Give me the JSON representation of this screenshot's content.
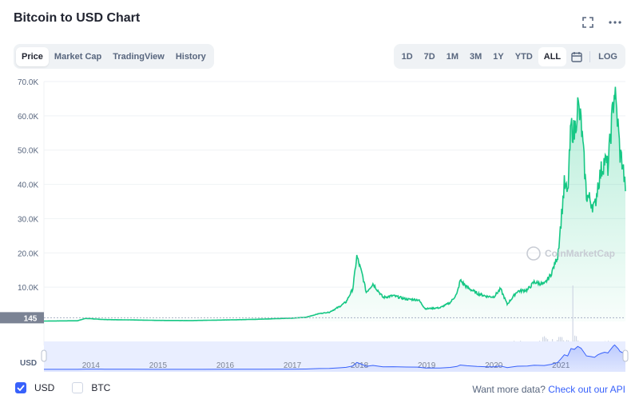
{
  "title": "Bitcoin to USD Chart",
  "tabs": [
    {
      "label": "Price",
      "active": true
    },
    {
      "label": "Market Cap",
      "active": false
    },
    {
      "label": "TradingView",
      "active": false
    },
    {
      "label": "History",
      "active": false
    }
  ],
  "ranges": [
    {
      "label": "1D",
      "active": false
    },
    {
      "label": "7D",
      "active": false
    },
    {
      "label": "1M",
      "active": false
    },
    {
      "label": "3M",
      "active": false
    },
    {
      "label": "1Y",
      "active": false
    },
    {
      "label": "YTD",
      "active": false
    },
    {
      "label": "ALL",
      "active": true
    }
  ],
  "log_label": "LOG",
  "icons": {
    "fullscreen": "fullscreen-icon",
    "more": "more-icon",
    "calendar": "calendar-icon"
  },
  "colors": {
    "line": "#16c784",
    "navigator": "#3861fb",
    "accent": "#3861fb",
    "text": "#222531",
    "muted": "#58667e"
  },
  "legend": [
    {
      "label": "USD",
      "checked": true
    },
    {
      "label": "BTC",
      "checked": false
    }
  ],
  "api": {
    "text": "Want more data?",
    "link": "Check out our API"
  },
  "watermark": "CoinMarketCap",
  "chart_data": {
    "type": "area",
    "currency_label": "USD",
    "ylim": [
      0,
      70000
    ],
    "y_ticks": [
      10000,
      20000,
      30000,
      40000,
      50000,
      60000,
      70000
    ],
    "y_tick_labels": [
      "10.0K",
      "20.0K",
      "30.0K",
      "40.0K",
      "50.0K",
      "60.0K",
      "70.0K"
    ],
    "baseline": {
      "value": 145,
      "label": "145"
    },
    "xlim": [
      2013.3,
      2021.96
    ],
    "x_ticks": [
      2014,
      2015,
      2016,
      2017,
      2018,
      2019,
      2020,
      2021
    ],
    "x_tick_labels": [
      "2014",
      "2015",
      "2016",
      "2017",
      "2018",
      "2019",
      "2020",
      "2021"
    ],
    "grid": true,
    "series": [
      {
        "x": [
          2013.3,
          2013.8,
          2013.92,
          2014.0,
          2014.2,
          2014.6,
          2015.0,
          2015.5,
          2016.0,
          2016.5,
          2017.0,
          2017.2,
          2017.4,
          2017.55,
          2017.7,
          2017.8,
          2017.9,
          2017.96,
          2018.05,
          2018.1,
          2018.2,
          2018.35,
          2018.5,
          2018.7,
          2018.88,
          2018.98,
          2019.2,
          2019.35,
          2019.45,
          2019.5,
          2019.6,
          2019.75,
          2019.9,
          2020.0,
          2020.1,
          2020.2,
          2020.35,
          2020.5,
          2020.6,
          2020.75,
          2020.85,
          2020.95,
          2021.0,
          2021.05,
          2021.1,
          2021.15,
          2021.2,
          2021.25,
          2021.3,
          2021.38,
          2021.45,
          2021.5,
          2021.55,
          2021.6,
          2021.65,
          2021.7,
          2021.78,
          2021.8,
          2021.85,
          2021.88,
          2021.92,
          2021.96
        ],
        "y": [
          120,
          200,
          900,
          800,
          550,
          450,
          300,
          260,
          430,
          650,
          980,
          1200,
          2300,
          2700,
          4300,
          5700,
          9500,
          19000,
          13000,
          8500,
          11000,
          7000,
          7500,
          6500,
          6300,
          3700,
          4000,
          5500,
          8000,
          12000,
          10000,
          8200,
          7300,
          7200,
          9500,
          5000,
          8800,
          9200,
          11500,
          10800,
          13700,
          19000,
          29000,
          40000,
          37000,
          57000,
          55000,
          63000,
          58000,
          37000,
          35000,
          33000,
          40000,
          44000,
          47000,
          45000,
          64000,
          67000,
          57000,
          49000,
          46000,
          38000
        ]
      }
    ]
  }
}
